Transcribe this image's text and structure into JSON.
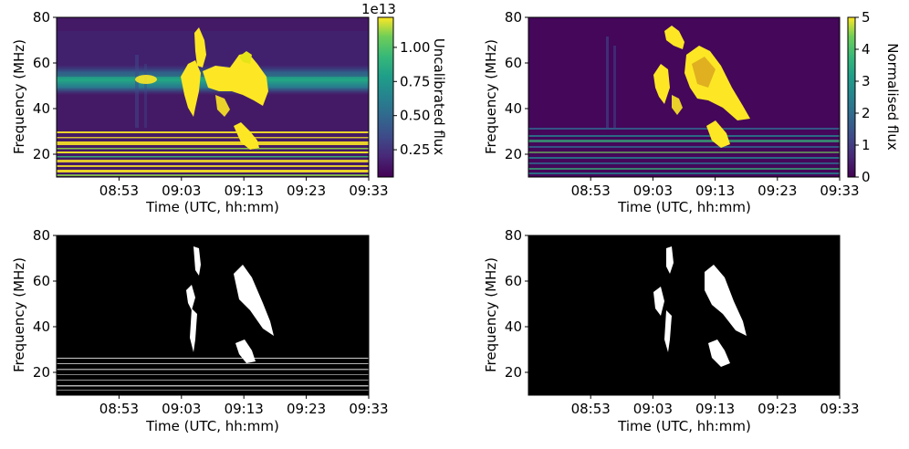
{
  "chart_data": [
    {
      "type": "heatmap",
      "panel": "top-left",
      "xlabel": "Time (UTC, hh:mm)",
      "ylabel": "Frequency (MHz)",
      "x_ticks": [
        "08:53",
        "09:03",
        "09:13",
        "09:23",
        "09:33"
      ],
      "x_tick_minutes": [
        53,
        63,
        73,
        83,
        93
      ],
      "xlim_minutes": [
        43,
        93
      ],
      "y_ticks": [
        20,
        40,
        60,
        80
      ],
      "ylim": [
        10,
        80
      ],
      "colormap": "viridis",
      "colorbar": {
        "label": "Uncalibrated flux",
        "offset_text": "1e13",
        "ticks": [
          "0.25",
          "0.50",
          "0.75",
          "1.00"
        ],
        "tick_values": [
          0.25,
          0.5,
          0.75,
          1.0
        ],
        "range": [
          0.05,
          1.22
        ]
      },
      "features": {
        "horizontal_band_mhz": 53,
        "burst_time_range": [
          "09:03",
          "09:17"
        ],
        "burst_freq_range_mhz": [
          23,
          75
        ],
        "rfi_band_mhz": [
          12,
          32
        ]
      }
    },
    {
      "type": "heatmap",
      "panel": "top-right",
      "xlabel": "Time (UTC, hh:mm)",
      "ylabel": "Frequency (MHz)",
      "x_ticks": [
        "08:53",
        "09:03",
        "09:13",
        "09:23",
        "09:33"
      ],
      "x_tick_minutes": [
        53,
        63,
        73,
        83,
        93
      ],
      "xlim_minutes": [
        43,
        93
      ],
      "y_ticks": [
        20,
        40,
        60,
        80
      ],
      "ylim": [
        10,
        80
      ],
      "colormap": "viridis",
      "colorbar": {
        "label": "Normalised flux",
        "offset_text": "",
        "ticks": [
          "0",
          "1",
          "2",
          "3",
          "4",
          "5"
        ],
        "tick_values": [
          0,
          1,
          2,
          3,
          4,
          5
        ],
        "range": [
          0,
          5
        ]
      },
      "features": {
        "burst_time_range": [
          "09:03",
          "09:17"
        ],
        "burst_freq_range_mhz": [
          23,
          75
        ],
        "rfi_band_mhz": [
          12,
          32
        ]
      }
    },
    {
      "type": "heatmap",
      "panel": "bottom-left",
      "xlabel": "Time (UTC, hh:mm)",
      "ylabel": "Frequency (MHz)",
      "x_ticks": [
        "08:53",
        "09:03",
        "09:13",
        "09:23",
        "09:33"
      ],
      "x_tick_minutes": [
        53,
        63,
        73,
        83,
        93
      ],
      "xlim_minutes": [
        43,
        93
      ],
      "y_ticks": [
        20,
        40,
        60,
        80
      ],
      "ylim": [
        10,
        80
      ],
      "colormap": "binary mask",
      "features": {
        "burst_time_range": [
          "09:03",
          "09:17"
        ],
        "burst_freq_range_mhz": [
          23,
          75
        ],
        "rfi_band_mhz": [
          12,
          32
        ]
      }
    },
    {
      "type": "heatmap",
      "panel": "bottom-right",
      "xlabel": "Time (UTC, hh:mm)",
      "ylabel": "Frequency (MHz)",
      "x_ticks": [
        "08:53",
        "09:03",
        "09:13",
        "09:23",
        "09:33"
      ],
      "x_tick_minutes": [
        53,
        63,
        73,
        83,
        93
      ],
      "xlim_minutes": [
        43,
        93
      ],
      "y_ticks": [
        20,
        40,
        60,
        80
      ],
      "ylim": [
        10,
        80
      ],
      "colormap": "binary mask",
      "features": {
        "burst_time_range": [
          "09:03",
          "09:17"
        ],
        "burst_freq_range_mhz": [
          23,
          75
        ]
      }
    }
  ]
}
